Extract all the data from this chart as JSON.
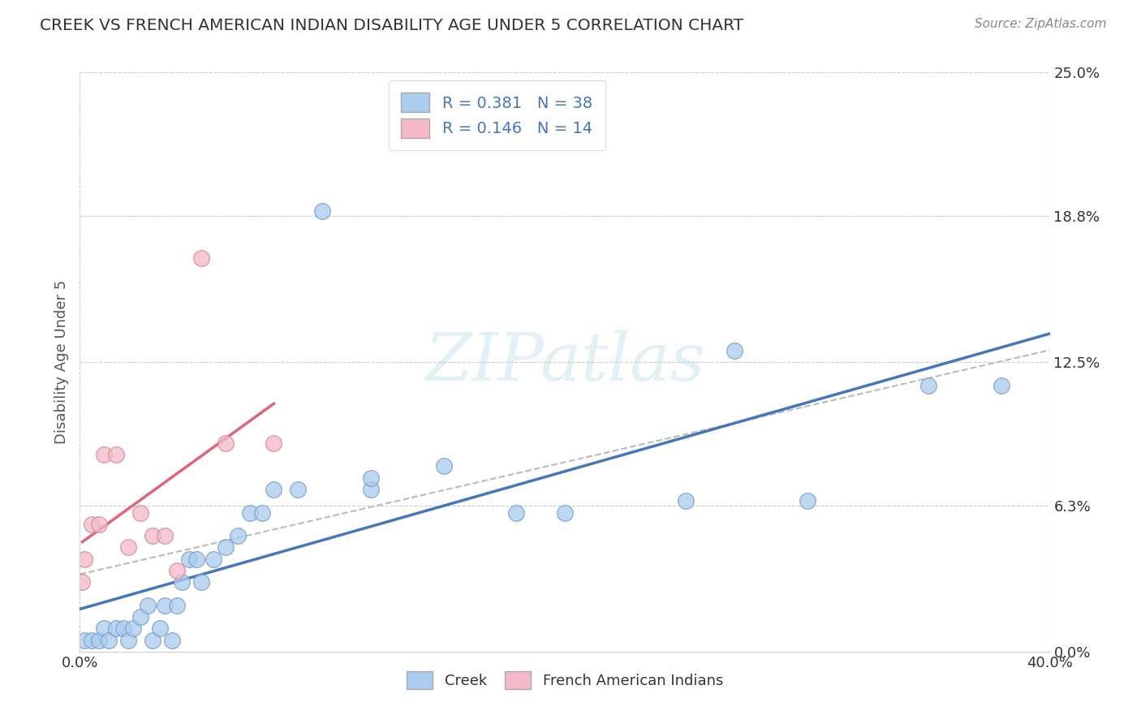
{
  "title": "CREEK VS FRENCH AMERICAN INDIAN DISABILITY AGE UNDER 5 CORRELATION CHART",
  "source": "Source: ZipAtlas.com",
  "ylabel": "Disability Age Under 5",
  "xlim": [
    0.0,
    0.4
  ],
  "ylim": [
    0.0,
    0.25
  ],
  "xtick_labels": [
    "0.0%",
    "40.0%"
  ],
  "ytick_labels": [
    "0.0%",
    "6.3%",
    "12.5%",
    "18.8%",
    "25.0%"
  ],
  "ytick_vals": [
    0.0,
    0.063,
    0.125,
    0.188,
    0.25
  ],
  "background_color": "#ffffff",
  "grid_color": "#cccccc",
  "creek_color": "#aaccee",
  "creek_edge_color": "#7799cc",
  "french_color": "#f5b8c8",
  "french_edge_color": "#cc8899",
  "creek_R": 0.381,
  "creek_N": 38,
  "french_R": 0.146,
  "french_N": 14,
  "creek_line_color": "#4477bb",
  "french_line_color": "#dd6677",
  "trend_line_color": "#bbbbbb",
  "watermark": "ZIPatlas",
  "legend_label_creek": "Creek",
  "legend_label_french": "French American Indians",
  "creek_x": [
    0.002,
    0.005,
    0.008,
    0.01,
    0.012,
    0.015,
    0.018,
    0.02,
    0.022,
    0.025,
    0.028,
    0.03,
    0.033,
    0.035,
    0.038,
    0.04,
    0.042,
    0.045,
    0.048,
    0.05,
    0.055,
    0.06,
    0.065,
    0.07,
    0.075,
    0.08,
    0.09,
    0.1,
    0.12,
    0.12,
    0.15,
    0.18,
    0.2,
    0.25,
    0.27,
    0.3,
    0.35,
    0.38
  ],
  "creek_y": [
    0.005,
    0.005,
    0.005,
    0.01,
    0.005,
    0.01,
    0.01,
    0.005,
    0.01,
    0.015,
    0.02,
    0.005,
    0.01,
    0.02,
    0.005,
    0.02,
    0.03,
    0.04,
    0.04,
    0.03,
    0.04,
    0.045,
    0.05,
    0.06,
    0.06,
    0.07,
    0.07,
    0.19,
    0.07,
    0.075,
    0.08,
    0.06,
    0.06,
    0.065,
    0.13,
    0.065,
    0.115,
    0.115
  ],
  "french_x": [
    0.001,
    0.002,
    0.005,
    0.008,
    0.01,
    0.015,
    0.02,
    0.025,
    0.03,
    0.035,
    0.04,
    0.05,
    0.06,
    0.08
  ],
  "french_y": [
    0.03,
    0.04,
    0.055,
    0.055,
    0.085,
    0.085,
    0.045,
    0.06,
    0.05,
    0.05,
    0.035,
    0.17,
    0.09,
    0.09
  ]
}
